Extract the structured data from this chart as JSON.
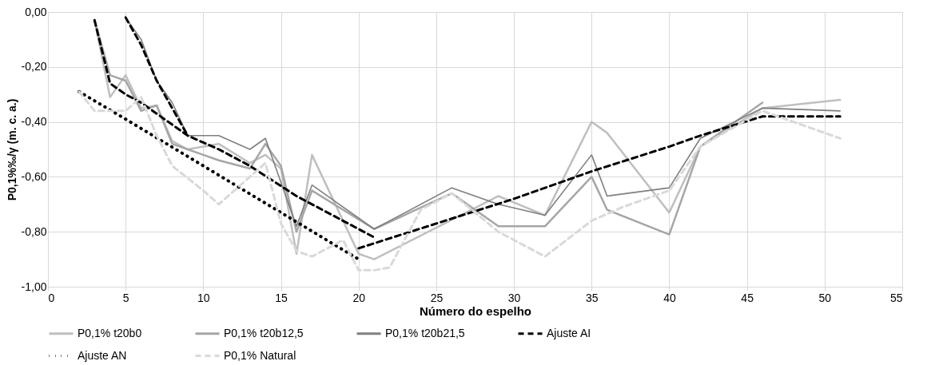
{
  "chart_data": {
    "type": "line",
    "xlabel": "Número do espelho",
    "ylabel": "P0,1%‰/γ (m. c. a.)",
    "xlim": [
      0,
      55
    ],
    "xticks": [
      0,
      5,
      10,
      15,
      20,
      25,
      30,
      35,
      40,
      45,
      50,
      55
    ],
    "ylim": [
      -1,
      0
    ],
    "yticks": [
      {
        "value": -1,
        "label": "-1,00"
      },
      {
        "value": -0.8,
        "label": "-0,80"
      },
      {
        "value": -0.6,
        "label": "-0,60"
      },
      {
        "value": -0.4,
        "label": "-0,40"
      },
      {
        "value": -0.2,
        "label": "-0,20"
      },
      {
        "value": 0,
        "label": "0,00"
      }
    ],
    "grid": true,
    "legend": "bottom",
    "series": [
      {
        "name": "P0,1% t20b0",
        "color": "#bfbfbf",
        "line_style": "solid",
        "x": [
          3,
          4,
          5,
          6,
          7,
          8,
          9,
          11,
          13,
          14,
          15,
          16,
          17,
          20,
          21,
          29,
          32,
          35,
          36,
          40,
          42,
          46,
          51
        ],
        "values": [
          -0.03,
          -0.31,
          -0.23,
          -0.35,
          -0.34,
          -0.47,
          -0.5,
          -0.48,
          -0.55,
          -0.52,
          -0.57,
          -0.88,
          -0.52,
          -0.88,
          -0.9,
          -0.67,
          -0.74,
          -0.4,
          -0.44,
          -0.73,
          -0.49,
          -0.35,
          -0.32
        ]
      },
      {
        "name": "P0,1% t20b12,5",
        "color": "#a6a6a6",
        "line_style": "solid",
        "x": [
          3,
          4,
          5,
          6,
          7,
          8,
          9,
          11,
          13,
          14,
          15,
          16,
          17,
          21,
          26,
          29,
          32,
          35,
          36,
          40,
          42,
          46
        ],
        "values": [
          -0.03,
          -0.23,
          -0.25,
          -0.36,
          -0.34,
          -0.48,
          -0.5,
          -0.54,
          -0.57,
          -0.48,
          -0.56,
          -0.8,
          -0.65,
          -0.79,
          -0.66,
          -0.78,
          -0.78,
          -0.6,
          -0.72,
          -0.81,
          -0.49,
          -0.33
        ]
      },
      {
        "name": "P0,1% t20b21,5",
        "color": "#7f7f7f",
        "line_style": "solid",
        "x": [
          5,
          6,
          7,
          8,
          9,
          11,
          13,
          14,
          16,
          17,
          21,
          26,
          29,
          32,
          35,
          36,
          40,
          42,
          46,
          51
        ],
        "values": [
          -0.02,
          -0.1,
          -0.25,
          -0.33,
          -0.45,
          -0.45,
          -0.5,
          -0.46,
          -0.78,
          -0.63,
          -0.79,
          -0.64,
          -0.7,
          -0.74,
          -0.52,
          -0.67,
          -0.64,
          -0.46,
          -0.35,
          -0.36
        ]
      },
      {
        "name": "Ajuste AI",
        "color": "#000000",
        "line_style": "dashed",
        "x": [
          5,
          6,
          7,
          8,
          9,
          null,
          3,
          4,
          5,
          6,
          7,
          9,
          11,
          13,
          16,
          21,
          null,
          20,
          25,
          30,
          35,
          40,
          42,
          46,
          51
        ],
        "values": [
          -0.02,
          -0.12,
          -0.25,
          -0.35,
          -0.45,
          null,
          -0.03,
          -0.26,
          -0.3,
          -0.33,
          -0.37,
          -0.45,
          -0.5,
          -0.56,
          -0.67,
          -0.82,
          null,
          -0.86,
          -0.77,
          -0.68,
          -0.58,
          -0.49,
          -0.45,
          -0.38,
          -0.38
        ]
      },
      {
        "name": "Ajuste AN",
        "color": "#000000",
        "line_style": "dotted",
        "x": [
          2,
          5,
          10,
          15,
          20
        ],
        "values": [
          -0.29,
          -0.39,
          -0.56,
          -0.73,
          -0.9
        ]
      },
      {
        "name": "P0,1% Natural",
        "color": "#d9d9d9",
        "line_style": "dashed",
        "x": [
          2,
          3,
          5,
          6,
          7,
          8,
          10,
          11,
          13,
          14,
          15,
          16,
          17,
          19,
          20,
          21,
          22,
          24,
          26,
          29,
          32,
          35,
          37,
          40,
          42,
          46,
          48,
          51
        ],
        "values": [
          -0.29,
          -0.36,
          -0.36,
          -0.31,
          -0.45,
          -0.56,
          -0.65,
          -0.7,
          -0.6,
          -0.55,
          -0.77,
          -0.87,
          -0.89,
          -0.83,
          -0.94,
          -0.94,
          -0.93,
          -0.72,
          -0.66,
          -0.8,
          -0.89,
          -0.76,
          -0.71,
          -0.65,
          -0.49,
          -0.36,
          -0.4,
          -0.46
        ]
      }
    ]
  }
}
